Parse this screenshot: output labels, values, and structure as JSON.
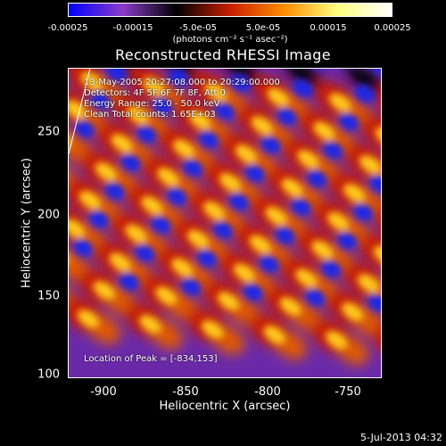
{
  "colorbar": {
    "labels": [
      "-0.00025",
      "-0.00015",
      "-5.0e-05",
      "5.0e-05",
      "0.00015",
      "0.00025"
    ],
    "units": "(photons cm⁻² s⁻¹ asec⁻²)",
    "colors": [
      "#0000ff",
      "#8a3cc8",
      "#000000",
      "#c81e00",
      "#ff8c00",
      "#ffff80",
      "#ffffff"
    ]
  },
  "title": "Reconstructed RHESSI Image",
  "annotations": {
    "time": "13-May-2005 20:27:08.000 to 20:29:00.000",
    "detectors": "Detectors: 4F 5F 6F 7F 8F, Att 0",
    "energy": "Energy Range: 25.0 - 50.0 keV",
    "clean": "Clean     Total counts: 1.65E+03",
    "peak": "Location of Peak = [-834,153]"
  },
  "axes": {
    "xlabel": "Heliocentric X (arcsec)",
    "ylabel": "Heliocentric Y (arcsec)",
    "xticks": [
      "-900",
      "-850",
      "-800",
      "-750"
    ],
    "yticks": [
      "250",
      "200",
      "150",
      "100"
    ]
  },
  "timestamp": "5-Jul-2013 04:32"
}
